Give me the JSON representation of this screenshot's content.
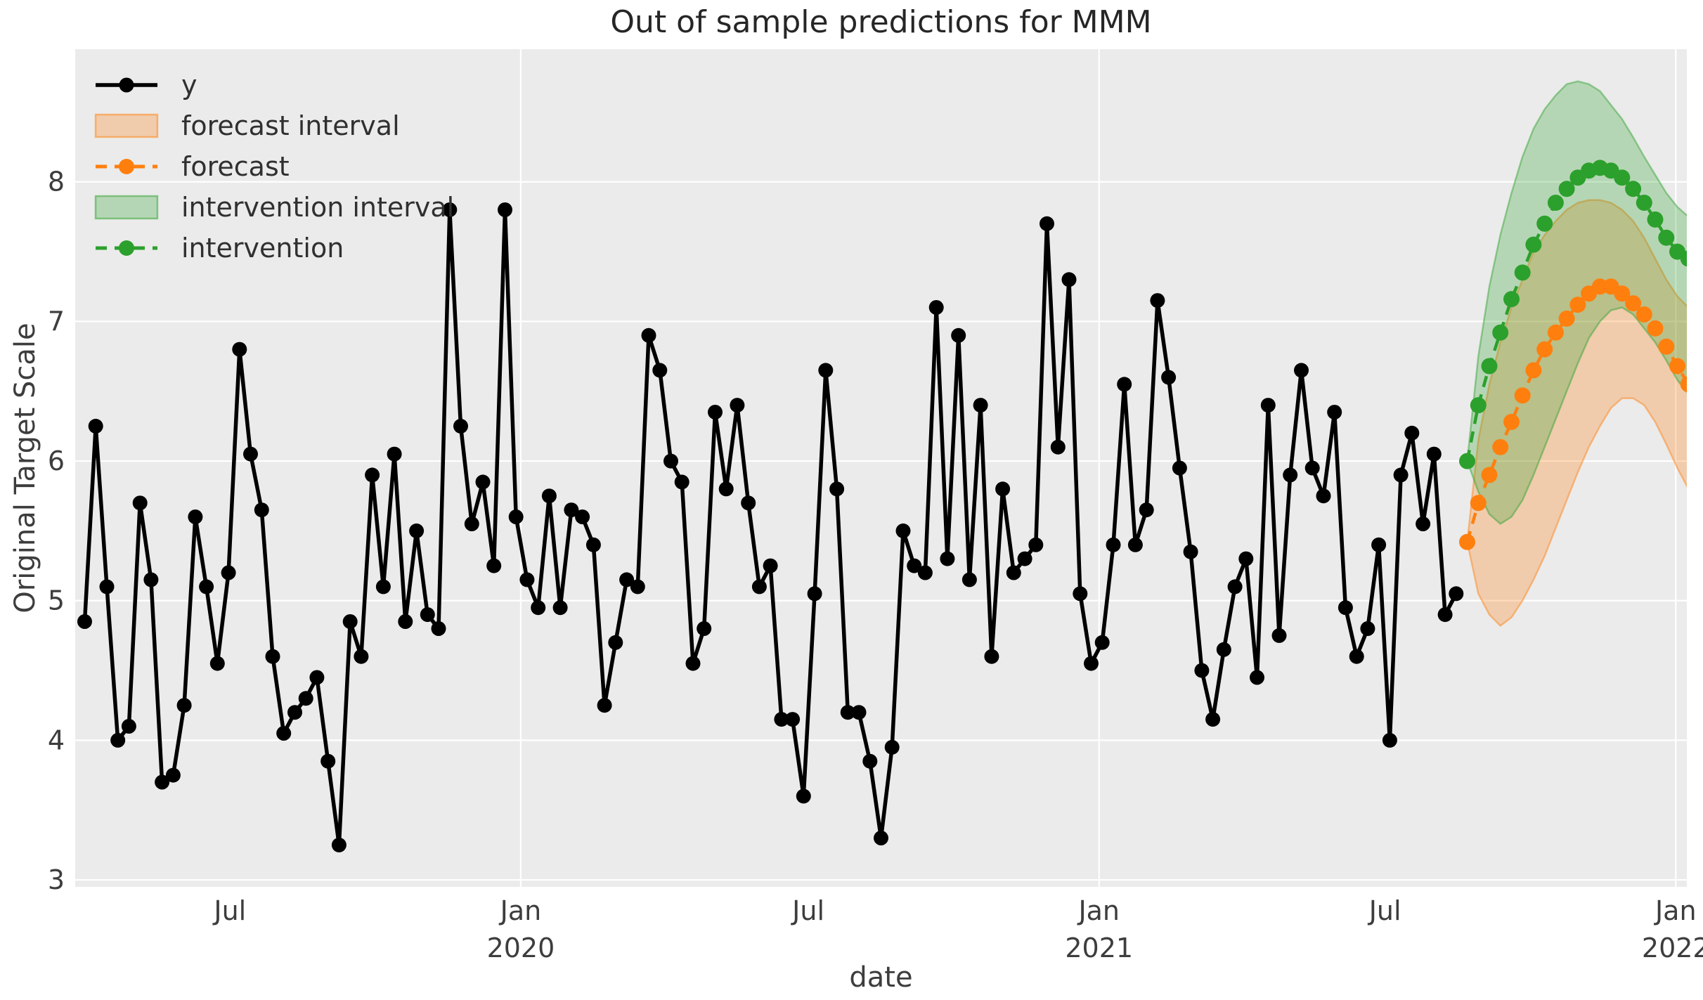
{
  "title": "Out of sample predictions for MMM",
  "colors": {
    "y_series": "#000000",
    "forecast": "#ff7f0e",
    "intervention": "#2ca02c",
    "plot_background": "#ebebeb",
    "gridline": "#ffffff",
    "tick_text": "#3d3d3d",
    "band_alpha": 0.28
  },
  "legend": {
    "items": [
      {
        "label": "y",
        "swatch": "black-line-dot"
      },
      {
        "label": "forecast interval",
        "swatch": "orange-band"
      },
      {
        "label": "forecast",
        "swatch": "orange-dashed-dot"
      },
      {
        "label": "intervention interval",
        "swatch": "green-band"
      },
      {
        "label": "intervention",
        "swatch": "green-dashed-dot"
      }
    ]
  },
  "chart_data": {
    "type": "line",
    "title": "Out of sample predictions for MMM",
    "xlabel": "date",
    "ylabel": "Original Target Scale",
    "grid": true,
    "legend_position": "upper left",
    "x_domain": [
      "2019-03-25",
      "2022-01-08"
    ],
    "y_domain": [
      2.95,
      8.95
    ],
    "y_ticks": [
      3,
      4,
      5,
      6,
      7,
      8
    ],
    "x_ticks": [
      {
        "label": "Jul",
        "year": null,
        "date": "2019-07-01",
        "grid": false
      },
      {
        "label": "Jan",
        "year": "2020",
        "date": "2020-01-01",
        "grid": true
      },
      {
        "label": "Jul",
        "year": null,
        "date": "2020-07-01",
        "grid": false
      },
      {
        "label": "Jan",
        "year": "2021",
        "date": "2021-01-01",
        "grid": true
      },
      {
        "label": "Jul",
        "year": null,
        "date": "2021-07-01",
        "grid": false
      },
      {
        "label": "Jan",
        "year": "2022",
        "date": "2022-01-01",
        "grid": true
      }
    ],
    "series": {
      "y": {
        "name": "y",
        "start": "2019-03-31",
        "freq_days": 7,
        "values": [
          4.85,
          6.25,
          5.1,
          4.0,
          4.1,
          5.7,
          5.15,
          3.7,
          3.75,
          4.25,
          5.6,
          5.1,
          4.55,
          5.2,
          6.8,
          6.05,
          5.65,
          4.6,
          4.05,
          4.2,
          4.3,
          4.45,
          3.85,
          3.25,
          4.85,
          4.6,
          5.9,
          5.1,
          6.05,
          4.85,
          5.5,
          4.9,
          4.8,
          7.8,
          6.25,
          5.55,
          5.85,
          5.25,
          7.8,
          5.6,
          5.15,
          4.95,
          5.75,
          4.95,
          5.65,
          5.6,
          5.4,
          4.25,
          4.7,
          5.15,
          5.1,
          6.9,
          6.65,
          6.0,
          5.85,
          4.55,
          4.8,
          6.35,
          5.8,
          6.4,
          5.7,
          5.1,
          5.25,
          4.15,
          4.15,
          3.6,
          5.05,
          6.65,
          5.8,
          4.2,
          4.2,
          3.85,
          3.3,
          3.95,
          5.5,
          5.25,
          5.2,
          7.1,
          5.3,
          6.9,
          5.15,
          6.4,
          4.6,
          5.8,
          5.2,
          5.3,
          5.4,
          7.7,
          6.1,
          7.3,
          5.05,
          4.55,
          4.7,
          5.4,
          6.55,
          5.4,
          5.65,
          7.15,
          6.6,
          5.95,
          5.35,
          4.5,
          4.15,
          4.65,
          5.1,
          5.3,
          4.45,
          6.4,
          4.75,
          5.9,
          6.65,
          5.95,
          5.75,
          6.35,
          4.95,
          4.6,
          4.8,
          5.4,
          4.0,
          5.9,
          6.2,
          5.55,
          6.05,
          4.9,
          5.05
        ]
      },
      "forecast": {
        "name": "forecast",
        "start": "2021-08-22",
        "freq_days": 7,
        "values": [
          5.42,
          5.7,
          5.9,
          6.1,
          6.28,
          6.47,
          6.65,
          6.8,
          6.92,
          7.02,
          7.12,
          7.2,
          7.25,
          7.25,
          7.2,
          7.13,
          7.05,
          6.95,
          6.82,
          6.68,
          6.55
        ],
        "lower": [
          5.42,
          5.05,
          4.9,
          4.82,
          4.88,
          5.0,
          5.15,
          5.32,
          5.52,
          5.72,
          5.92,
          6.1,
          6.25,
          6.38,
          6.45,
          6.45,
          6.4,
          6.28,
          6.12,
          5.95,
          5.8
        ],
        "upper": [
          5.42,
          6.15,
          6.55,
          6.85,
          7.1,
          7.3,
          7.5,
          7.62,
          7.72,
          7.8,
          7.85,
          7.87,
          7.87,
          7.85,
          7.8,
          7.72,
          7.6,
          7.45,
          7.3,
          7.18,
          7.1
        ]
      },
      "intervention": {
        "name": "intervention",
        "start": "2021-08-22",
        "freq_days": 7,
        "values": [
          6.0,
          6.4,
          6.68,
          6.92,
          7.16,
          7.35,
          7.55,
          7.7,
          7.85,
          7.95,
          8.03,
          8.08,
          8.1,
          8.08,
          8.03,
          7.95,
          7.85,
          7.73,
          7.6,
          7.5,
          7.45
        ],
        "lower": [
          6.0,
          5.78,
          5.62,
          5.55,
          5.6,
          5.72,
          5.9,
          6.1,
          6.3,
          6.5,
          6.7,
          6.88,
          7.0,
          7.08,
          7.1,
          7.05,
          6.95,
          6.85,
          6.72,
          6.58,
          6.48
        ],
        "upper": [
          6.0,
          6.75,
          7.25,
          7.62,
          7.92,
          8.18,
          8.38,
          8.52,
          8.62,
          8.7,
          8.72,
          8.7,
          8.65,
          8.55,
          8.45,
          8.32,
          8.18,
          8.05,
          7.92,
          7.82,
          7.75
        ]
      }
    }
  }
}
